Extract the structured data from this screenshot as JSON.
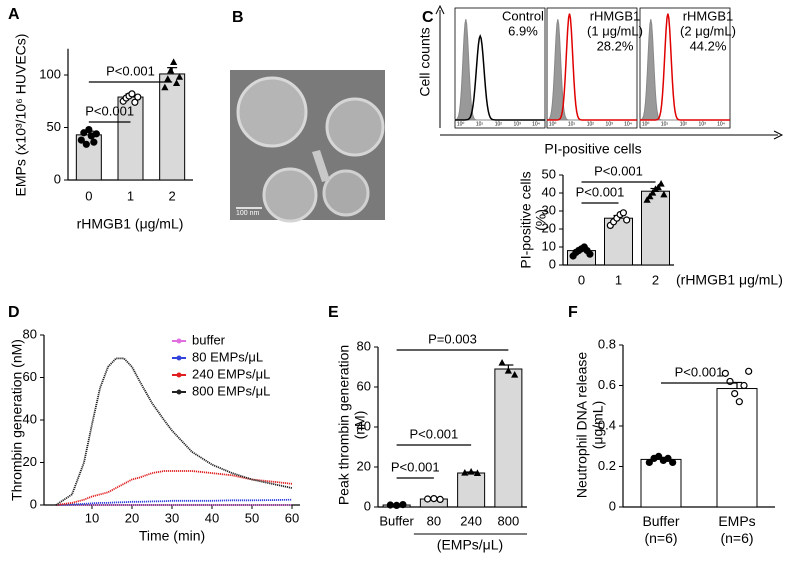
{
  "chart_data": [
    {
      "type": "bar",
      "panel": "A",
      "categories": [
        "0",
        "1",
        "2"
      ],
      "values": [
        43,
        79,
        101
      ],
      "errors": [
        3.5,
        3,
        6
      ],
      "points": [
        [
          38,
          45,
          34,
          48,
          42,
          36,
          44
        ],
        [
          75,
          78,
          80,
          82,
          74,
          79
        ],
        [
          88,
          96,
          104,
          112,
          92,
          98
        ]
      ],
      "markers": [
        "filled-circle",
        "open-circle",
        "triangle"
      ],
      "ylim": [
        0,
        125
      ],
      "yticks": [
        0,
        50,
        100
      ],
      "ylabel": [
        "EMPs (x10³/10⁶ HUVECs)"
      ],
      "xlabel": "rHMGB1 (μg/mL)",
      "annotations": [
        "P<0.001",
        "P<0.001"
      ],
      "color": "#d9d9d9"
    },
    {
      "type": "flow",
      "panel": "C",
      "ylabel": "Cell counts",
      "xlabel": "PI-positive cells",
      "labels": [
        [
          "Control"
        ],
        [
          "rHMGB1",
          "(1 μg/mL)"
        ],
        [
          "rHMGB1",
          "(2 μg/mL)"
        ]
      ],
      "values": [
        6.9,
        28.2,
        44.2
      ],
      "value_labels": [
        "6.9%",
        "28.2%",
        "44.2%"
      ],
      "colors": [
        "#000000",
        "#e00000",
        "#e00000"
      ],
      "log": true,
      "xlim": [
        0.5,
        30000
      ],
      "xticks": [
        {
          "value": 1,
          "label": "10⁰"
        },
        {
          "value": 10,
          "label": "10¹"
        },
        {
          "value": 100,
          "label": "10²"
        },
        {
          "value": 1000,
          "label": "10³"
        },
        {
          "value": 10000,
          "label": "10⁴"
        }
      ]
    },
    {
      "type": "bar",
      "panel": "",
      "categories": [
        "0",
        "1",
        "2"
      ],
      "values": [
        8,
        26,
        41
      ],
      "errors": [
        1.5,
        1.5,
        1.5
      ],
      "points": [
        [
          5,
          7,
          8,
          9,
          10,
          8,
          6
        ],
        [
          22,
          24,
          26,
          28,
          29,
          25
        ],
        [
          36,
          38,
          40,
          42,
          43,
          45,
          39
        ]
      ],
      "markers": [
        "filled-circle",
        "open-circle",
        "triangle"
      ],
      "ylim": [
        0,
        50
      ],
      "yticks": [
        0,
        10,
        20,
        30,
        40,
        50
      ],
      "ylabel": [
        "PI-positive cells",
        "(%)"
      ],
      "xlabel": "(rHMGB1 μg/mL)",
      "annotations": [
        "P<0.001",
        "P<0.001"
      ],
      "color": "#d9d9d9"
    },
    {
      "type": "line",
      "panel": "D",
      "x": [
        1,
        5,
        8,
        10,
        12,
        14,
        16,
        18,
        20,
        22,
        25,
        28,
        30,
        35,
        40,
        45,
        50,
        55,
        60
      ],
      "series": [
        {
          "name": "buffer",
          "color": "#e070e0",
          "values": [
            0,
            0,
            0,
            0,
            0,
            0,
            0,
            0,
            0,
            0,
            0,
            0,
            0,
            0,
            0,
            0,
            0,
            0,
            0
          ]
        },
        {
          "name": "80 EMPs/μL",
          "color": "#3344dd",
          "values": [
            0,
            0.3,
            0.5,
            0.8,
            1,
            1,
            1.2,
            1.3,
            1.5,
            1.5,
            1.7,
            1.8,
            2,
            2,
            2,
            2.2,
            2.2,
            2.3,
            2.5
          ]
        },
        {
          "name": "240 EMPs/μL",
          "color": "#e02020",
          "values": [
            0,
            1,
            2.5,
            4,
            5,
            6,
            8,
            10,
            12,
            13,
            15,
            16,
            16,
            16,
            15,
            14,
            12,
            11,
            10
          ]
        },
        {
          "name": "800 EMPs/μL",
          "color": "#222222",
          "values": [
            0,
            5,
            20,
            38,
            55,
            65,
            69,
            69,
            65,
            58,
            48,
            40,
            35,
            25,
            19,
            15,
            12,
            10,
            8
          ]
        }
      ],
      "xlim": [
        -2,
        62
      ],
      "xticks": [
        10,
        20,
        30,
        40,
        50,
        60
      ],
      "ylim": [
        0,
        80
      ],
      "yticks": [
        0,
        20,
        40,
        60,
        80
      ],
      "xlabel": "Time (min)",
      "ylabel": "Thrombin generation (nM)",
      "legend": "upper right"
    },
    {
      "type": "bar",
      "panel": "E",
      "categories": [
        "Buffer",
        "80",
        "240",
        "800"
      ],
      "values": [
        1,
        4,
        17,
        69
      ],
      "errors": [
        0.3,
        0.5,
        0.5,
        2
      ],
      "points": [
        [
          1,
          0.8,
          1.2
        ],
        [
          4,
          4.2,
          3.8
        ],
        [
          17,
          17.5,
          16.8
        ],
        [
          72,
          68,
          66
        ]
      ],
      "markers": [
        "filled-circle",
        "open-circle",
        "triangle",
        "triangle"
      ],
      "ylim": [
        0,
        80
      ],
      "yticks": [
        0,
        20,
        40,
        60,
        80
      ],
      "ylabel": [
        "Peak thrombin generation",
        "(nM)"
      ],
      "xlabel": "(EMPs/μL)",
      "annotations": [
        "P=0.003",
        "P<0.001",
        "P<0.001"
      ],
      "color": "#d9d9d9"
    },
    {
      "type": "bar",
      "panel": "F",
      "categories": [
        [
          "Buffer",
          "(n=6)"
        ],
        [
          "EMPs",
          "(n=6)"
        ]
      ],
      "values": [
        0.235,
        0.585
      ],
      "errors": [
        0.01,
        0.03
      ],
      "points": [
        [
          0.22,
          0.24,
          0.25,
          0.23,
          0.24,
          0.22
        ],
        [
          0.66,
          0.62,
          0.56,
          0.52,
          0.6,
          0.67
        ]
      ],
      "markers": [
        "filled-circle",
        "open-circle"
      ],
      "ylim": [
        0,
        0.8
      ],
      "yticks": [
        0,
        0.2,
        0.4,
        0.6,
        0.8
      ],
      "ylabel": [
        "Neutrophil DNA release",
        "(μg/mL)"
      ],
      "annotations": [
        "P<0.001"
      ],
      "color": "#ffffff"
    }
  ],
  "panel_b": {
    "letter": "B",
    "scale_label": "100 nm"
  }
}
